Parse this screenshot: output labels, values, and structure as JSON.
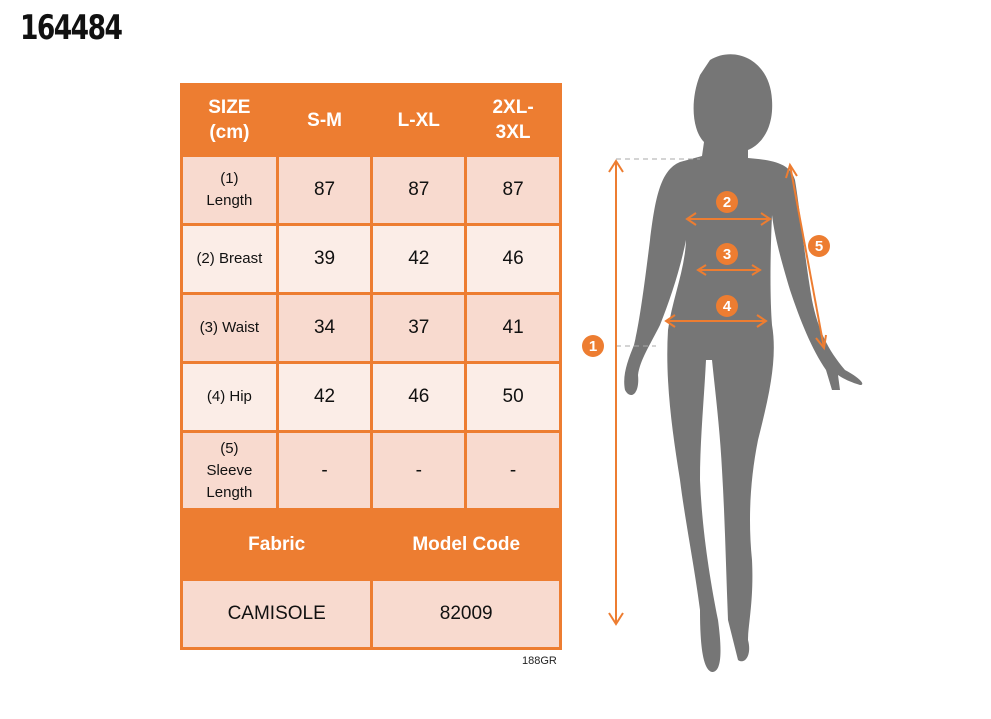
{
  "product_code": "164484",
  "table": {
    "headers": [
      "SIZE\n(cm)",
      "S-M",
      "L-XL",
      "2XL-\n3XL"
    ],
    "rows": [
      {
        "label": "(1)\nLength",
        "values": [
          "87",
          "87",
          "87"
        ]
      },
      {
        "label": "(2) Breast",
        "values": [
          "39",
          "42",
          "46"
        ]
      },
      {
        "label": "(3) Waist",
        "values": [
          "34",
          "37",
          "41"
        ]
      },
      {
        "label": "(4) Hip",
        "values": [
          "42",
          "46",
          "50"
        ]
      },
      {
        "label": "(5)\nSleeve\nLength",
        "values": [
          "-",
          "-",
          "-"
        ]
      }
    ],
    "fabric_label": "Fabric",
    "model_code_label": "Model Code",
    "fabric": "CAMISOLE",
    "model_code": "82009"
  },
  "footnote": "188GR",
  "figure": {
    "markers": [
      "1",
      "2",
      "3",
      "4",
      "5"
    ]
  },
  "colors": {
    "accent": "#ed7d31",
    "row_dark": "#f8dacf",
    "row_light": "#fbede7",
    "silhouette": "#767676"
  }
}
